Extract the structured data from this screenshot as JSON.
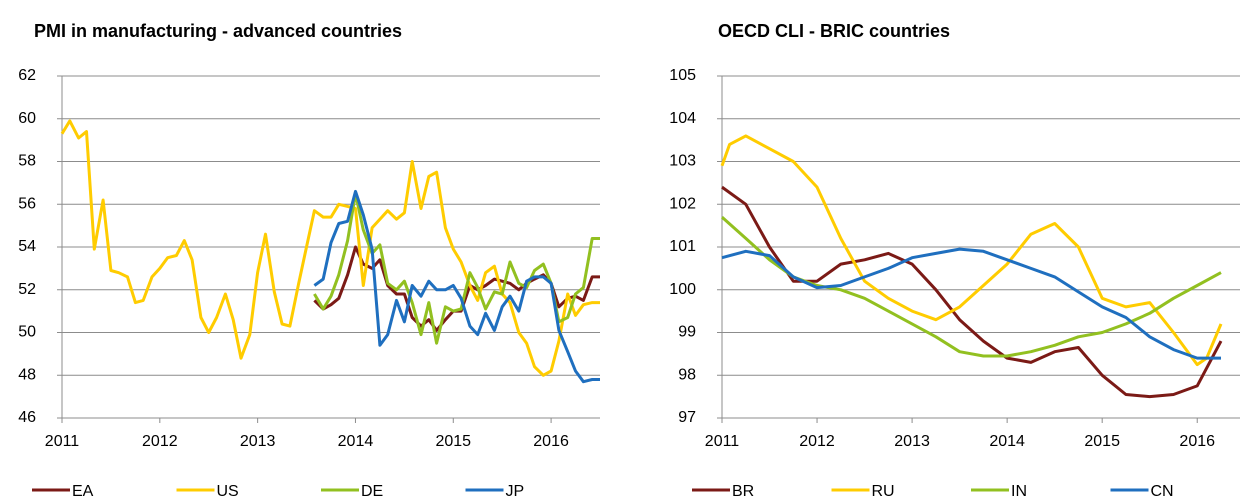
{
  "chart_data": [
    {
      "type": "line",
      "title": "PMI in manufacturing - advanced countries",
      "xlim": [
        2011,
        2016.5
      ],
      "xticks": [
        2011,
        2012,
        2013,
        2014,
        2015,
        2016
      ],
      "ylim": [
        46,
        62
      ],
      "yticks": [
        46,
        48,
        50,
        52,
        54,
        56,
        58,
        60,
        62
      ],
      "grid": true,
      "legend": "bottom",
      "series": [
        {
          "name": "EA",
          "color": "#7b1a16",
          "x": [
            2013.58,
            2013.67,
            2013.75,
            2013.83,
            2013.92,
            2014,
            2014.08,
            2014.17,
            2014.25,
            2014.33,
            2014.42,
            2014.5,
            2014.58,
            2014.67,
            2014.75,
            2014.83,
            2014.92,
            2015,
            2015.08,
            2015.17,
            2015.25,
            2015.33,
            2015.42,
            2015.5,
            2015.58,
            2015.67,
            2015.75,
            2015.83,
            2015.92,
            2016,
            2016.08,
            2016.17,
            2016.25,
            2016.33,
            2016.42,
            2016.5
          ],
          "values": [
            51.5,
            51.1,
            51.3,
            51.6,
            52.7,
            54.0,
            53.2,
            53.0,
            53.4,
            52.2,
            51.8,
            51.8,
            50.7,
            50.3,
            50.6,
            50.1,
            50.6,
            51.0,
            51.0,
            52.2,
            52.0,
            52.2,
            52.5,
            52.4,
            52.3,
            52.0,
            52.3,
            52.5,
            52.7,
            52.3,
            51.2,
            51.6,
            51.7,
            51.5,
            52.6,
            52.6
          ]
        },
        {
          "name": "US",
          "color": "#ffcc00",
          "x": [
            2011,
            2011.08,
            2011.17,
            2011.25,
            2011.33,
            2011.42,
            2011.5,
            2011.58,
            2011.67,
            2011.75,
            2011.83,
            2011.92,
            2012,
            2012.08,
            2012.17,
            2012.25,
            2012.33,
            2012.42,
            2012.5,
            2012.58,
            2012.67,
            2012.75,
            2012.83,
            2012.92,
            2013,
            2013.08,
            2013.17,
            2013.25,
            2013.33,
            2013.42,
            2013.5,
            2013.58,
            2013.67,
            2013.75,
            2013.83,
            2013.92,
            2014,
            2014.08,
            2014.17,
            2014.25,
            2014.33,
            2014.42,
            2014.5,
            2014.58,
            2014.67,
            2014.75,
            2014.83,
            2014.92,
            2015,
            2015.08,
            2015.17,
            2015.25,
            2015.33,
            2015.42,
            2015.5,
            2015.58,
            2015.67,
            2015.75,
            2015.83,
            2015.92,
            2016,
            2016.08,
            2016.17,
            2016.25,
            2016.33,
            2016.42,
            2016.5
          ],
          "values": [
            59.3,
            59.9,
            59.1,
            59.4,
            53.9,
            56.2,
            52.9,
            52.8,
            52.6,
            51.4,
            51.5,
            52.6,
            53.0,
            53.5,
            53.6,
            54.3,
            53.4,
            50.7,
            50.0,
            50.7,
            51.8,
            50.6,
            48.8,
            49.9,
            52.8,
            54.6,
            51.9,
            50.4,
            50.3,
            52.3,
            54.0,
            55.7,
            55.4,
            55.4,
            56.0,
            55.9,
            55.8,
            52.2,
            54.9,
            55.3,
            55.7,
            55.3,
            55.6,
            58.0,
            55.8,
            57.3,
            57.5,
            54.9,
            53.9,
            53.3,
            52.2,
            51.5,
            52.8,
            53.1,
            51.8,
            51.4,
            50.0,
            49.5,
            48.4,
            48.0,
            48.2,
            49.6,
            51.8,
            50.8,
            51.3,
            51.4,
            51.4
          ]
        },
        {
          "name": "DE",
          "color": "#92c020",
          "x": [
            2013.58,
            2013.67,
            2013.75,
            2013.83,
            2013.92,
            2014,
            2014.08,
            2014.17,
            2014.25,
            2014.33,
            2014.42,
            2014.5,
            2014.58,
            2014.67,
            2014.75,
            2014.83,
            2014.92,
            2015,
            2015.08,
            2015.17,
            2015.25,
            2015.33,
            2015.42,
            2015.5,
            2015.58,
            2015.67,
            2015.75,
            2015.83,
            2015.92,
            2016,
            2016.08,
            2016.17,
            2016.25,
            2016.33,
            2016.42,
            2016.5
          ],
          "values": [
            51.8,
            51.1,
            51.7,
            52.7,
            54.3,
            56.5,
            54.8,
            53.7,
            54.1,
            52.3,
            52.0,
            52.4,
            51.4,
            49.9,
            51.4,
            49.5,
            51.2,
            51.0,
            51.1,
            52.8,
            52.1,
            51.1,
            51.9,
            51.8,
            53.3,
            52.3,
            52.1,
            52.9,
            53.2,
            52.3,
            50.5,
            50.7,
            51.8,
            52.1,
            54.4,
            54.4
          ]
        },
        {
          "name": "JP",
          "color": "#1f6fbf",
          "x": [
            2013.58,
            2013.67,
            2013.75,
            2013.83,
            2013.92,
            2014,
            2014.08,
            2014.17,
            2014.25,
            2014.33,
            2014.42,
            2014.5,
            2014.58,
            2014.67,
            2014.75,
            2014.83,
            2014.92,
            2015,
            2015.08,
            2015.17,
            2015.25,
            2015.33,
            2015.42,
            2015.5,
            2015.58,
            2015.67,
            2015.75,
            2015.83,
            2015.92,
            2016,
            2016.08,
            2016.17,
            2016.25,
            2016.33,
            2016.42,
            2016.5
          ],
          "values": [
            52.2,
            52.5,
            54.2,
            55.1,
            55.2,
            56.6,
            55.5,
            53.9,
            49.4,
            49.9,
            51.5,
            50.5,
            52.2,
            51.7,
            52.4,
            52.0,
            52.0,
            52.2,
            51.6,
            50.3,
            49.9,
            50.9,
            50.1,
            51.2,
            51.7,
            51.0,
            52.4,
            52.6,
            52.6,
            52.3,
            50.1,
            49.1,
            48.2,
            47.7,
            47.8,
            47.8
          ]
        }
      ]
    },
    {
      "type": "line",
      "title": "OECD CLI - BRIC countries",
      "xlim": [
        2011,
        2016.45
      ],
      "xticks": [
        2011,
        2012,
        2013,
        2014,
        2015,
        2016
      ],
      "ylim": [
        97,
        105
      ],
      "yticks": [
        97,
        98,
        99,
        100,
        101,
        102,
        103,
        104,
        105
      ],
      "grid": true,
      "legend": "bottom",
      "series": [
        {
          "name": "BR",
          "color": "#7b1a16",
          "x": [
            2011,
            2011.25,
            2011.5,
            2011.75,
            2012,
            2012.25,
            2012.5,
            2012.75,
            2013,
            2013.25,
            2013.5,
            2013.75,
            2014,
            2014.25,
            2014.5,
            2014.75,
            2015,
            2015.25,
            2015.5,
            2015.75,
            2016,
            2016.25
          ],
          "values": [
            102.4,
            102.0,
            101.0,
            100.2,
            100.2,
            100.6,
            100.7,
            100.85,
            100.6,
            100.0,
            99.3,
            98.8,
            98.4,
            98.3,
            98.55,
            98.65,
            98.0,
            97.55,
            97.5,
            97.55,
            97.75,
            98.8
          ]
        },
        {
          "name": "RU",
          "color": "#ffcc00",
          "x": [
            2011,
            2011.08,
            2011.25,
            2011.5,
            2011.75,
            2012,
            2012.25,
            2012.5,
            2012.75,
            2013,
            2013.25,
            2013.5,
            2013.75,
            2014,
            2014.25,
            2014.5,
            2014.75,
            2015,
            2015.25,
            2015.5,
            2015.75,
            2016,
            2016.1,
            2016.25
          ],
          "values": [
            102.9,
            103.4,
            103.6,
            103.3,
            103.0,
            102.4,
            101.2,
            100.2,
            99.8,
            99.5,
            99.3,
            99.6,
            100.1,
            100.6,
            101.3,
            101.55,
            101.0,
            99.8,
            99.6,
            99.7,
            99.0,
            98.25,
            98.4,
            99.2
          ]
        },
        {
          "name": "IN",
          "color": "#92c020",
          "x": [
            2011,
            2011.25,
            2011.5,
            2011.75,
            2012,
            2012.25,
            2012.5,
            2012.75,
            2013,
            2013.25,
            2013.5,
            2013.75,
            2014,
            2014.25,
            2014.5,
            2014.75,
            2015,
            2015.25,
            2015.5,
            2015.75,
            2016,
            2016.25
          ],
          "values": [
            101.7,
            101.2,
            100.7,
            100.3,
            100.1,
            100.0,
            99.8,
            99.5,
            99.2,
            98.9,
            98.55,
            98.45,
            98.45,
            98.55,
            98.7,
            98.9,
            99.0,
            99.2,
            99.45,
            99.8,
            100.1,
            100.4
          ]
        },
        {
          "name": "CN",
          "color": "#1f6fbf",
          "x": [
            2011,
            2011.25,
            2011.5,
            2011.75,
            2012,
            2012.25,
            2012.5,
            2012.75,
            2013,
            2013.25,
            2013.5,
            2013.75,
            2014,
            2014.25,
            2014.5,
            2014.75,
            2015,
            2015.25,
            2015.5,
            2015.75,
            2016,
            2016.25
          ],
          "values": [
            100.75,
            100.9,
            100.8,
            100.3,
            100.05,
            100.1,
            100.3,
            100.5,
            100.75,
            100.85,
            100.95,
            100.9,
            100.7,
            100.5,
            100.3,
            99.95,
            99.6,
            99.35,
            98.9,
            98.6,
            98.4,
            98.4
          ]
        }
      ]
    }
  ]
}
